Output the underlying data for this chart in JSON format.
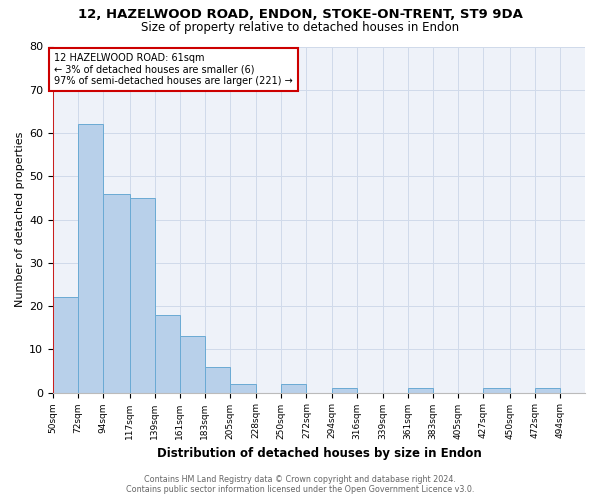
{
  "title": "12, HAZELWOOD ROAD, ENDON, STOKE-ON-TRENT, ST9 9DA",
  "subtitle": "Size of property relative to detached houses in Endon",
  "xlabel": "Distribution of detached houses by size in Endon",
  "ylabel": "Number of detached properties",
  "bin_labels": [
    "50sqm",
    "72sqm",
    "94sqm",
    "117sqm",
    "139sqm",
    "161sqm",
    "183sqm",
    "205sqm",
    "228sqm",
    "250sqm",
    "272sqm",
    "294sqm",
    "316sqm",
    "339sqm",
    "361sqm",
    "383sqm",
    "405sqm",
    "427sqm",
    "450sqm",
    "472sqm",
    "494sqm"
  ],
  "bar_values": [
    22,
    62,
    46,
    45,
    18,
    13,
    6,
    2,
    0,
    2,
    0,
    1,
    0,
    0,
    1,
    0,
    0,
    1,
    0,
    1,
    0
  ],
  "bar_color": "#b8d0ea",
  "bar_edge_color": "#6aaad4",
  "ylim": [
    0,
    80
  ],
  "yticks": [
    0,
    10,
    20,
    30,
    40,
    50,
    60,
    70,
    80
  ],
  "annotation_text": "12 HAZELWOOD ROAD: 61sqm\n← 3% of detached houses are smaller (6)\n97% of semi-detached houses are larger (221) →",
  "annotation_box_color": "#ffffff",
  "annotation_box_edge_color": "#cc0000",
  "property_line_color": "#cc0000",
  "footer_line1": "Contains HM Land Registry data © Crown copyright and database right 2024.",
  "footer_line2": "Contains public sector information licensed under the Open Government Licence v3.0.",
  "grid_color": "#d0daea",
  "background_color": "#eef2f9"
}
